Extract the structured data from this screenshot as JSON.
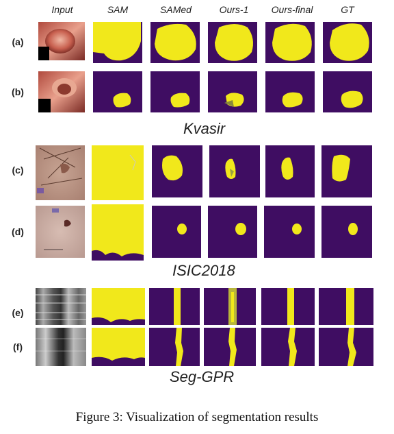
{
  "columns": [
    "Input",
    "SAM",
    "SAMed",
    "Ours-1",
    "Ours-final",
    "GT"
  ],
  "rows": [
    "(a)",
    "(b)",
    "(c)",
    "(d)",
    "(e)",
    "(f)"
  ],
  "datasets": [
    "Kvasir",
    "ISIC2018",
    "Seg-GPR"
  ],
  "caption": "Figure 3: Visualization of segmentation results",
  "colors": {
    "background": "#3f0d62",
    "foreground": "#f1e81b",
    "bg_alt": "#430a5e"
  }
}
